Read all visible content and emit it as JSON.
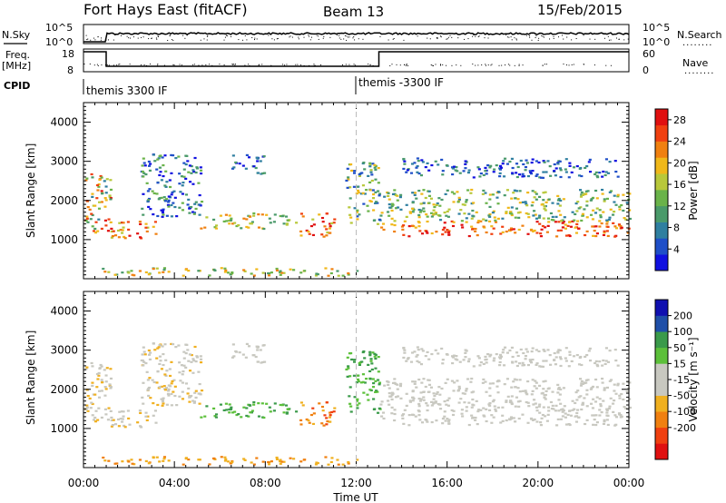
{
  "header": {
    "station": "Fort Hays East (fitACF)",
    "beam": "Beam 13",
    "date": "15/Feb/2015"
  },
  "labels": {
    "nsky": "N.Sky",
    "nsearch": "N.Search",
    "freq": "Freq.",
    "freq_unit": "[MHz]",
    "nave": "Nave",
    "cpid": "CPID",
    "dots": "........"
  },
  "cpid": {
    "segments": [
      {
        "label": "themis 3300 IF",
        "start": "00:00"
      },
      {
        "label": "themis -3300 IF",
        "start": "12:00"
      }
    ]
  },
  "colors": {
    "power": [
      "#1010e0",
      "#1f4fc8",
      "#2f7fa0",
      "#4a9a6a",
      "#6ab34a",
      "#b8c83a",
      "#f0b81a",
      "#f08010",
      "#f04010",
      "#e01010"
    ],
    "velocity": [
      "#e01010",
      "#f04010",
      "#f08010",
      "#f0b020",
      "#c8c8c0",
      "#c8c8c0",
      "#5cc03a",
      "#3a9a4a",
      "#1f4fa8",
      "#1010b0"
    ]
  },
  "chart_data": [
    {
      "type": "line",
      "name": "noise-panel",
      "left_axis": {
        "label": "N.Sky",
        "ticks": [
          "10^5",
          "10^0"
        ]
      },
      "right_axis": {
        "label": "N.Search",
        "ticks": [
          "10^5",
          "10^0"
        ]
      }
    },
    {
      "type": "line",
      "name": "frequency-panel",
      "left_axis": {
        "label": "Freq. [MHz]",
        "ticks": [
          18,
          8
        ]
      },
      "right_axis": {
        "label": "Nave",
        "ticks": [
          60,
          0
        ]
      },
      "frequency_series": {
        "x": [
          "00:00",
          "01:00",
          "01:00",
          "13:00",
          "13:00",
          "24:00"
        ],
        "y": [
          18,
          18,
          10,
          10,
          18,
          18
        ]
      }
    },
    {
      "type": "heatmap",
      "name": "power-panel",
      "ylabel": "Slant Range [km]",
      "yticks": [
        1000,
        2000,
        3000,
        4000
      ],
      "ylim": [
        0,
        4500
      ],
      "colorbar": {
        "label": "Power [dB]",
        "ticks": [
          4,
          8,
          12,
          16,
          20,
          24,
          28
        ],
        "range": [
          0,
          30
        ]
      }
    },
    {
      "type": "heatmap",
      "name": "velocity-panel",
      "ylabel": "Slant Range [km]",
      "yticks": [
        1000,
        2000,
        3000,
        4000
      ],
      "ylim": [
        0,
        4500
      ],
      "colorbar": {
        "label": "Velocity [m s⁻¹]",
        "ticks": [
          200,
          100,
          50,
          15,
          -15,
          -50,
          -100,
          -200
        ],
        "range": [
          -250,
          250
        ]
      }
    }
  ],
  "xaxis": {
    "label": "Time UT",
    "ticks": [
      "00:00",
      "04:00",
      "08:00",
      "12:00",
      "16:00",
      "20:00",
      "00:00"
    ],
    "range_hours": [
      0,
      24
    ]
  }
}
